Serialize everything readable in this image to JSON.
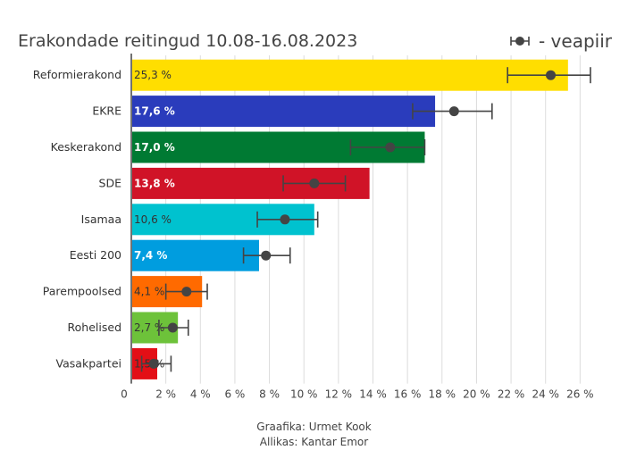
{
  "header": {
    "title": "Erakondade reitingud 10.08-16.08.2023",
    "legend_label": "- veapiir"
  },
  "footer": {
    "credit": "Graafika: Urmet Kook",
    "source": "Allikas: Kantar Emor"
  },
  "chart_data": {
    "type": "bar",
    "orientation": "horizontal",
    "title": "Erakondade reitingud 10.08-16.08.2023",
    "xlim": [
      0,
      28
    ],
    "x_ticks": [
      0,
      2,
      4,
      6,
      8,
      10,
      12,
      14,
      16,
      18,
      20,
      22,
      24,
      26
    ],
    "x_tick_labels": [
      "0",
      "2 %",
      "4 %",
      "6 %",
      "8 %",
      "10 %",
      "12 %",
      "14 %",
      "16 %",
      "18 %",
      "20 %",
      "22 %",
      "24 %",
      "26 %"
    ],
    "grid": true,
    "legend": "top-right",
    "categories": [
      "Reformierakond",
      "EKRE",
      "Keskerakond",
      "SDE",
      "Isamaa",
      "Eesti 200",
      "Parempoolsed",
      "Rohelised",
      "Vasakpartei"
    ],
    "values": [
      25.3,
      17.6,
      17.0,
      13.8,
      10.6,
      7.4,
      4.1,
      2.7,
      1.5
    ],
    "value_labels": [
      "25,3 %",
      "17,6 %",
      "17,0 %",
      "13,8 %",
      "10,6 %",
      "7,4 %",
      "4,1 %",
      "2,7 %",
      "1,5 %"
    ],
    "colors": [
      "#ffde00",
      "#2a3cbc",
      "#007a33",
      "#d01327",
      "#00c2cf",
      "#009ddf",
      "#ff6a00",
      "#6dc23a",
      "#e30f16"
    ],
    "label_colors": [
      "#333333",
      "#ffffff",
      "#ffffff",
      "#ffffff",
      "#333333",
      "#ffffff",
      "#333333",
      "#333333",
      "#333333"
    ],
    "point_estimate": [
      24.3,
      18.7,
      15.0,
      10.6,
      8.9,
      7.8,
      3.2,
      2.4,
      1.3
    ],
    "error_low": [
      21.8,
      16.3,
      12.7,
      8.8,
      7.3,
      6.5,
      2.0,
      1.6,
      0.6
    ],
    "error_high": [
      26.6,
      20.9,
      17.0,
      12.4,
      10.8,
      9.2,
      4.4,
      3.3,
      2.3
    ],
    "error_color": "#444444"
  }
}
